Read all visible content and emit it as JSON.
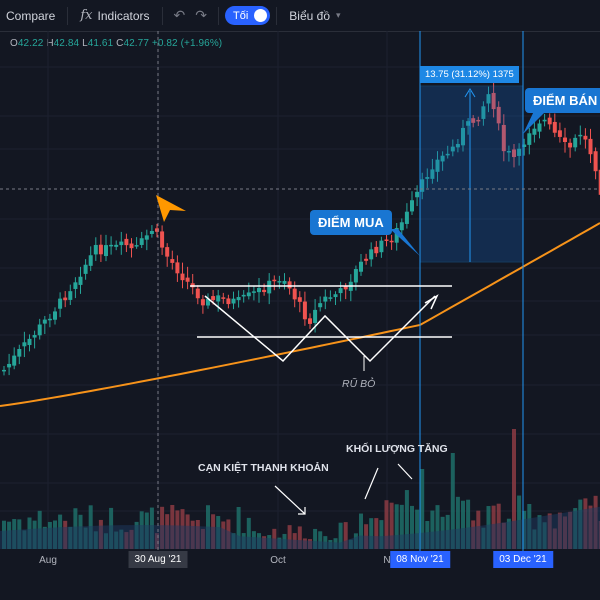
{
  "toolbar": {
    "compare_label": "Compare",
    "indicators_label": "Indicators",
    "theme_toggle_label": "Tối",
    "chart_type_label": "Biểu đồ"
  },
  "ohlc": {
    "o_label": "O",
    "o_value": "42.22",
    "h_label": "H",
    "h_value": "42.84",
    "l_label": "L",
    "l_value": "41.61",
    "c_label": "C",
    "c_value": "42.77",
    "change": "+0.82 (+1.96%)"
  },
  "annotations": {
    "buy_point": "ĐIỂM MUA",
    "sell_point": "ĐIỂM BÁN",
    "shakeout": "RŨ BỎ",
    "liquidity_dryup": "CẠN KIỆT THANH KHOẢN",
    "volume_increase": "KHỐI LƯỢNG TĂNG",
    "measure": "13.75 (31.12%) 1375"
  },
  "xaxis": {
    "ticks": [
      "Aug",
      "Oct",
      "N"
    ],
    "badge_crosshair": "30 Aug '21",
    "badge_buy": "08 Nov '21",
    "badge_sell": "03 Dec '21"
  },
  "colors": {
    "background": "#131722",
    "up": "#26a69a",
    "down": "#ef5350",
    "ma": "#f7931a",
    "accent": "#1976d2"
  },
  "chart_data": {
    "type": "candlestick",
    "ohlc_last": {
      "open": 42.22,
      "high": 42.84,
      "low": 41.61,
      "close": 42.77,
      "change": 0.82,
      "change_pct": 1.96
    },
    "measure_range": {
      "price_change": 13.75,
      "percent_change": 31.12,
      "value": 1375
    },
    "x_labels": [
      "Aug",
      "30 Aug '21",
      "Oct",
      "08 Nov '21",
      "03 Dec '21"
    ],
    "series": [
      {
        "name": "price",
        "kind": "candles"
      },
      {
        "name": "moving-average",
        "kind": "line"
      },
      {
        "name": "volume",
        "kind": "bars"
      }
    ]
  }
}
